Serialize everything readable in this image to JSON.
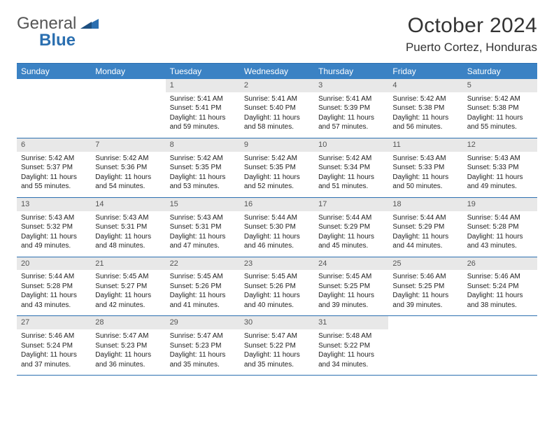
{
  "brand": {
    "word1": "General",
    "word2": "Blue"
  },
  "title": "October 2024",
  "subtitle": "Puerto Cortez, Honduras",
  "colors": {
    "header_bg": "#3b82c4",
    "rule": "#2b6fb0",
    "daynum_bg": "#e8e8e8"
  },
  "dow": [
    "Sunday",
    "Monday",
    "Tuesday",
    "Wednesday",
    "Thursday",
    "Friday",
    "Saturday"
  ],
  "first_weekday_index": 2,
  "days": [
    {
      "n": "1",
      "sr": "5:41 AM",
      "ss": "5:41 PM",
      "dl": "11 hours",
      "dm": "59 minutes."
    },
    {
      "n": "2",
      "sr": "5:41 AM",
      "ss": "5:40 PM",
      "dl": "11 hours",
      "dm": "58 minutes."
    },
    {
      "n": "3",
      "sr": "5:41 AM",
      "ss": "5:39 PM",
      "dl": "11 hours",
      "dm": "57 minutes."
    },
    {
      "n": "4",
      "sr": "5:42 AM",
      "ss": "5:38 PM",
      "dl": "11 hours",
      "dm": "56 minutes."
    },
    {
      "n": "5",
      "sr": "5:42 AM",
      "ss": "5:38 PM",
      "dl": "11 hours",
      "dm": "55 minutes."
    },
    {
      "n": "6",
      "sr": "5:42 AM",
      "ss": "5:37 PM",
      "dl": "11 hours",
      "dm": "55 minutes."
    },
    {
      "n": "7",
      "sr": "5:42 AM",
      "ss": "5:36 PM",
      "dl": "11 hours",
      "dm": "54 minutes."
    },
    {
      "n": "8",
      "sr": "5:42 AM",
      "ss": "5:35 PM",
      "dl": "11 hours",
      "dm": "53 minutes."
    },
    {
      "n": "9",
      "sr": "5:42 AM",
      "ss": "5:35 PM",
      "dl": "11 hours",
      "dm": "52 minutes."
    },
    {
      "n": "10",
      "sr": "5:42 AM",
      "ss": "5:34 PM",
      "dl": "11 hours",
      "dm": "51 minutes."
    },
    {
      "n": "11",
      "sr": "5:43 AM",
      "ss": "5:33 PM",
      "dl": "11 hours",
      "dm": "50 minutes."
    },
    {
      "n": "12",
      "sr": "5:43 AM",
      "ss": "5:33 PM",
      "dl": "11 hours",
      "dm": "49 minutes."
    },
    {
      "n": "13",
      "sr": "5:43 AM",
      "ss": "5:32 PM",
      "dl": "11 hours",
      "dm": "49 minutes."
    },
    {
      "n": "14",
      "sr": "5:43 AM",
      "ss": "5:31 PM",
      "dl": "11 hours",
      "dm": "48 minutes."
    },
    {
      "n": "15",
      "sr": "5:43 AM",
      "ss": "5:31 PM",
      "dl": "11 hours",
      "dm": "47 minutes."
    },
    {
      "n": "16",
      "sr": "5:44 AM",
      "ss": "5:30 PM",
      "dl": "11 hours",
      "dm": "46 minutes."
    },
    {
      "n": "17",
      "sr": "5:44 AM",
      "ss": "5:29 PM",
      "dl": "11 hours",
      "dm": "45 minutes."
    },
    {
      "n": "18",
      "sr": "5:44 AM",
      "ss": "5:29 PM",
      "dl": "11 hours",
      "dm": "44 minutes."
    },
    {
      "n": "19",
      "sr": "5:44 AM",
      "ss": "5:28 PM",
      "dl": "11 hours",
      "dm": "43 minutes."
    },
    {
      "n": "20",
      "sr": "5:44 AM",
      "ss": "5:28 PM",
      "dl": "11 hours",
      "dm": "43 minutes."
    },
    {
      "n": "21",
      "sr": "5:45 AM",
      "ss": "5:27 PM",
      "dl": "11 hours",
      "dm": "42 minutes."
    },
    {
      "n": "22",
      "sr": "5:45 AM",
      "ss": "5:26 PM",
      "dl": "11 hours",
      "dm": "41 minutes."
    },
    {
      "n": "23",
      "sr": "5:45 AM",
      "ss": "5:26 PM",
      "dl": "11 hours",
      "dm": "40 minutes."
    },
    {
      "n": "24",
      "sr": "5:45 AM",
      "ss": "5:25 PM",
      "dl": "11 hours",
      "dm": "39 minutes."
    },
    {
      "n": "25",
      "sr": "5:46 AM",
      "ss": "5:25 PM",
      "dl": "11 hours",
      "dm": "39 minutes."
    },
    {
      "n": "26",
      "sr": "5:46 AM",
      "ss": "5:24 PM",
      "dl": "11 hours",
      "dm": "38 minutes."
    },
    {
      "n": "27",
      "sr": "5:46 AM",
      "ss": "5:24 PM",
      "dl": "11 hours",
      "dm": "37 minutes."
    },
    {
      "n": "28",
      "sr": "5:47 AM",
      "ss": "5:23 PM",
      "dl": "11 hours",
      "dm": "36 minutes."
    },
    {
      "n": "29",
      "sr": "5:47 AM",
      "ss": "5:23 PM",
      "dl": "11 hours",
      "dm": "35 minutes."
    },
    {
      "n": "30",
      "sr": "5:47 AM",
      "ss": "5:22 PM",
      "dl": "11 hours",
      "dm": "35 minutes."
    },
    {
      "n": "31",
      "sr": "5:48 AM",
      "ss": "5:22 PM",
      "dl": "11 hours",
      "dm": "34 minutes."
    }
  ],
  "labels": {
    "sunrise": "Sunrise:",
    "sunset": "Sunset:",
    "daylight": "Daylight:",
    "and": "and"
  }
}
